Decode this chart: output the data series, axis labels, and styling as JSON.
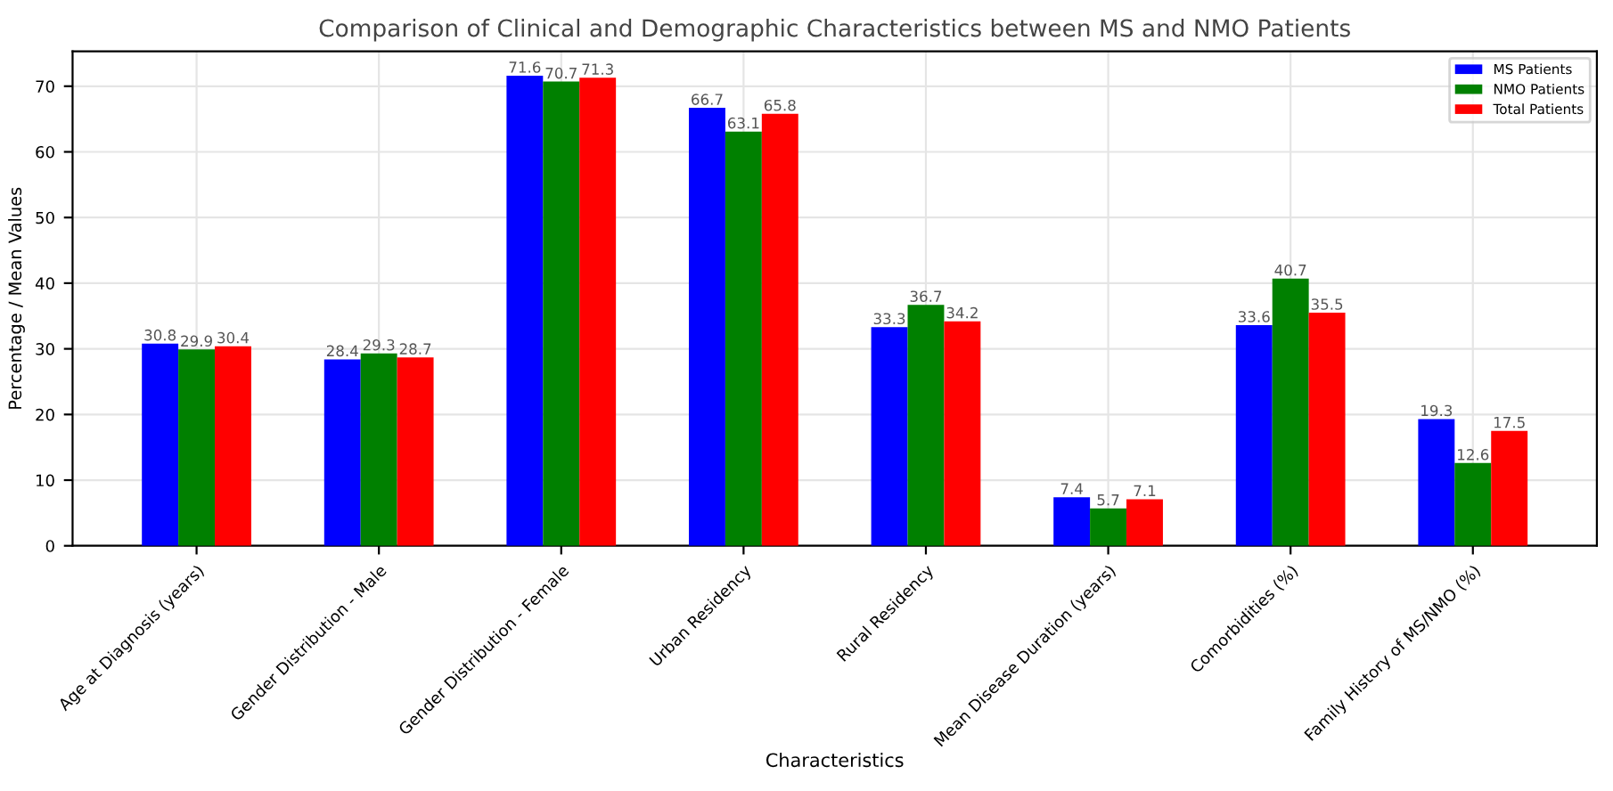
{
  "chart_data": {
    "type": "bar",
    "title": "Comparison of Clinical and Demographic Characteristics between MS and NMO Patients",
    "xlabel": "Characteristics",
    "ylabel": "Percentage / Mean Values",
    "categories": [
      "Age at Diagnosis (years)",
      "Gender Distribution - Male",
      "Gender Distribution - Female",
      "Urban Residency",
      "Rural Residency",
      "Mean Disease Duration (years)",
      "Comorbidities (%)",
      "Family History of MS/NMO (%)"
    ],
    "series": [
      {
        "name": "MS Patients",
        "color": "#0000ff",
        "values": [
          30.8,
          28.4,
          71.6,
          66.7,
          33.3,
          7.4,
          33.6,
          19.3
        ]
      },
      {
        "name": "NMO Patients",
        "color": "#008000",
        "values": [
          29.9,
          29.3,
          70.7,
          63.1,
          36.7,
          5.7,
          40.7,
          12.6
        ]
      },
      {
        "name": "Total Patients",
        "color": "#ff0000",
        "values": [
          30.4,
          28.7,
          71.3,
          65.8,
          34.2,
          7.1,
          35.5,
          17.5
        ]
      }
    ],
    "ylim": [
      0,
      75.3
    ],
    "yticks": [
      0,
      10,
      20,
      30,
      40,
      50,
      60,
      70
    ],
    "grid": true,
    "legend": "top right",
    "data_labels": true
  }
}
